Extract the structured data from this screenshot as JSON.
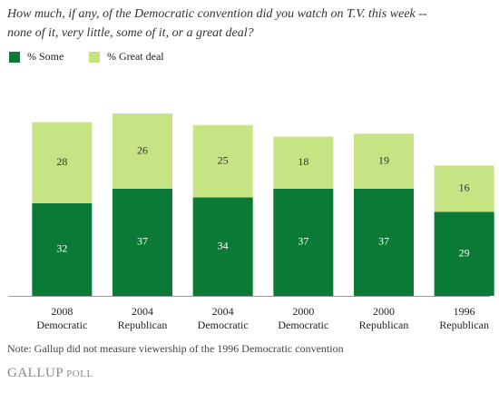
{
  "chart_data": {
    "type": "stacked-bar",
    "title": [
      "How much, if any, of the Democratic convention did you watch on T.V. this week --",
      "none of it, very little, some of it, or a great deal?"
    ],
    "categories": [
      [
        "2008",
        "Democratic"
      ],
      [
        "2004",
        "Republican"
      ],
      [
        "2004",
        "Democratic"
      ],
      [
        "2000",
        "Democratic"
      ],
      [
        "2000",
        "Republican"
      ],
      [
        "1996",
        "Republican"
      ]
    ],
    "series": [
      {
        "name": "% Some",
        "color": "#0b7a37",
        "values": [
          32,
          37,
          34,
          37,
          37,
          29
        ]
      },
      {
        "name": "% Great deal",
        "color": "#c6e484",
        "values": [
          28,
          26,
          25,
          18,
          19,
          16
        ]
      }
    ],
    "note": "Note: Gallup did not measure viewership of the 1996 Democratic convention",
    "source": [
      "GALLUP",
      "POLL"
    ]
  }
}
